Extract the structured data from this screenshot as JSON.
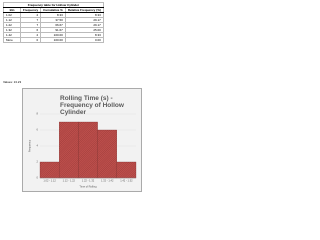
{
  "table": {
    "title": "Frequency table for Hollow Cylinder",
    "columns": [
      "Bin",
      "Frequency",
      "Cumulative %",
      "Relative Frequency (%)"
    ],
    "rows": [
      [
        "1.02",
        "2",
        "8.33",
        "8.33"
      ],
      [
        "1.12",
        "7",
        "37.50",
        "29.17"
      ],
      [
        "1.22",
        "7",
        "66.67",
        "29.17"
      ],
      [
        "1.32",
        "6",
        "91.67",
        "25.00"
      ],
      [
        "1.42",
        "2",
        "100.00",
        "8.33"
      ],
      [
        "More",
        "0",
        "100.00",
        "0.00"
      ]
    ]
  },
  "note": "Values: 13.23",
  "chart_data": {
    "type": "bar",
    "title": "Rolling Time (s) - Frequency of Hollow Cylinder",
    "x_label": "Time of Rolling",
    "y_label": "Frequency",
    "categories": [
      "1.02 - 1.12",
      "1.12 - 1.22",
      "1.22 - 1.32",
      "1.32 - 1.42",
      "1.42 - 1.52"
    ],
    "values": [
      2,
      7,
      7,
      6,
      2
    ],
    "color": "#c0504d",
    "ylim": [
      0,
      8
    ],
    "yticks": [
      0,
      2,
      4,
      6,
      8
    ],
    "grid": true
  }
}
